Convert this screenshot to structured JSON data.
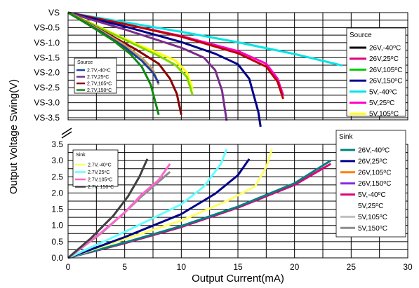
{
  "chart_data": {
    "type": "line",
    "xlabel": "Output Current(mA)",
    "ylabel": "Output Voltage Swing(V)",
    "x_ticks": [
      "0",
      "5",
      "10",
      "15",
      "20",
      "25",
      "30"
    ],
    "xlim": [
      0,
      30
    ],
    "grid": true,
    "source_panel": {
      "y_ticks": [
        "VS",
        "VS-0.5",
        "VS-1.0",
        "VS-1.5",
        "VS-2.0",
        "VS-2.5",
        "VS-3.0",
        "VS-3.5"
      ],
      "ylim": [
        0,
        3.5
      ],
      "legend_large": {
        "title": "Source",
        "placement": "right",
        "entries": [
          {
            "label": "26V,-40°C",
            "color": "#000000"
          },
          {
            "label": "26V,25°C",
            "color": "#e0007a"
          },
          {
            "label": "26V,105°C",
            "color": "#00cc00"
          },
          {
            "label": "26V,150°C",
            "color": "#00008b"
          },
          {
            "label": "5V,-40°C",
            "color": "#00e5e5"
          },
          {
            "label": "5V,25°C",
            "color": "#ff00cc"
          },
          {
            "label": "5V,105°C",
            "color": "#ffff00"
          }
        ]
      },
      "legend_small": {
        "title": "Source",
        "placement": "left",
        "entries": [
          {
            "label": "2.7V,-40°C",
            "color": "#1e3fa0"
          },
          {
            "label": "2.7V,25°C",
            "color": "#7b2c8c"
          },
          {
            "label": "2.7V,105°C",
            "color": "#8b0000"
          },
          {
            "label": "2.7V,150°C",
            "color": "#118811"
          }
        ]
      },
      "series": [
        {
          "color": "#00e5e5",
          "x": [
            0,
            5,
            10,
            15,
            20,
            24.2
          ],
          "y": [
            0,
            0.32,
            0.64,
            0.99,
            1.38,
            1.76
          ]
        },
        {
          "color": "#ff00cc",
          "x": [
            0,
            5,
            10,
            15,
            17.5,
            18.5,
            19
          ],
          "y": [
            0,
            0.38,
            0.78,
            1.28,
            1.7,
            2.2,
            2.75
          ]
        },
        {
          "color": "#c00000",
          "x": [
            0,
            5,
            10,
            15,
            17.5,
            18.5,
            19
          ],
          "y": [
            0,
            0.38,
            0.8,
            1.35,
            1.8,
            2.3,
            2.87
          ]
        },
        {
          "color": "#00008b",
          "x": [
            0,
            5,
            10,
            13,
            15,
            16,
            16.8,
            17
          ],
          "y": [
            0,
            0.46,
            0.98,
            1.37,
            1.72,
            2.2,
            3.3,
            3.8
          ]
        },
        {
          "color": "#7b2c8c",
          "x": [
            0,
            5,
            10,
            12,
            13,
            13.6,
            14
          ],
          "y": [
            0,
            0.56,
            1.17,
            1.5,
            1.92,
            2.6,
            3.6
          ]
        },
        {
          "color": "#ffff00",
          "x": [
            0,
            3,
            6,
            8,
            9.5,
            10.5,
            11
          ],
          "y": [
            0,
            0.52,
            1.04,
            1.35,
            1.6,
            2.0,
            2.55
          ]
        },
        {
          "color": "#7fd900",
          "x": [
            0,
            3,
            6,
            8,
            9.5,
            10.5,
            11
          ],
          "y": [
            0,
            0.54,
            1.08,
            1.44,
            1.75,
            2.15,
            2.75
          ]
        },
        {
          "color": "#8b0000",
          "x": [
            0,
            3,
            6,
            8,
            9,
            9.6,
            10
          ],
          "y": [
            0,
            0.6,
            1.23,
            1.7,
            2.2,
            2.7,
            3.4
          ]
        },
        {
          "color": "#c8a060",
          "x": [
            0,
            3,
            5,
            6.5,
            7.5,
            8
          ],
          "y": [
            0,
            0.62,
            1.08,
            1.5,
            1.9,
            2.4
          ]
        },
        {
          "color": "#1e3fa0",
          "x": [
            0,
            3,
            5,
            6.5,
            7.5,
            8
          ],
          "y": [
            0,
            0.66,
            1.15,
            1.6,
            2.0,
            2.35
          ]
        },
        {
          "color": "#118811",
          "x": [
            0,
            2,
            4,
            5.5,
            6.5,
            7.3,
            8
          ],
          "y": [
            0,
            0.45,
            0.93,
            1.38,
            1.8,
            2.4,
            3.4
          ]
        }
      ]
    },
    "sink_panel": {
      "y_ticks": [
        "0.0",
        "0.5",
        "1.0",
        "1.5",
        "2.0",
        "2.5",
        "3.0",
        "3.5"
      ],
      "ylim": [
        0,
        3.5
      ],
      "legend_large": {
        "title": "Sink",
        "placement": "right",
        "entries": [
          {
            "label": "26V,-40°C",
            "color": "#008080"
          },
          {
            "label": "26V,25°C",
            "color": "#00008b"
          },
          {
            "label": "26V,105°C",
            "color": "#ff8000"
          },
          {
            "label": "26V,150°C",
            "color": "#8a2be2"
          },
          {
            "label": "5V,-40°C",
            "color": "#e0007a"
          },
          {
            "label": "5V,25°C",
            "color": "#ffffff"
          },
          {
            "label": "5V,105°C",
            "color": "#c0c0c0"
          },
          {
            "label": "5V,150°C",
            "color": "#8c8c8c"
          }
        ]
      },
      "legend_small": {
        "title": "Sink",
        "placement": "left",
        "entries": [
          {
            "label": "2.7V,-40°C",
            "color": "#ffff66"
          },
          {
            "label": "2.7V,25°C",
            "color": "#66ffff"
          },
          {
            "label": "2.7V,105°C",
            "color": "#ff66cc"
          },
          {
            "label": "2.7V, 150°C",
            "color": "#404040"
          }
        ]
      },
      "series": [
        {
          "color": "#e0007a",
          "x": [
            0,
            5,
            10,
            15,
            20,
            23.2
          ],
          "y": [
            0,
            0.45,
            0.95,
            1.55,
            2.25,
            2.9
          ]
        },
        {
          "color": "#008080",
          "x": [
            0,
            5,
            10,
            15,
            20,
            23.2
          ],
          "y": [
            0,
            0.47,
            0.98,
            1.58,
            2.3,
            3.0
          ]
        },
        {
          "color": "#ffff66",
          "x": [
            0,
            5,
            10,
            14,
            16.5,
            17.5,
            18
          ],
          "y": [
            0,
            0.58,
            1.15,
            1.75,
            2.2,
            2.8,
            3.35
          ]
        },
        {
          "color": "#00008b",
          "x": [
            0,
            5,
            10,
            13,
            15,
            16
          ],
          "y": [
            0,
            0.64,
            1.35,
            1.98,
            2.55,
            3.05
          ]
        },
        {
          "color": "#66ffff",
          "x": [
            0,
            5,
            10,
            12,
            13.5,
            14
          ],
          "y": [
            0,
            0.8,
            1.65,
            2.2,
            2.9,
            3.35
          ]
        },
        {
          "color": "#8c8c8c",
          "x": [
            0,
            3,
            5,
            6.5,
            7.5,
            9
          ],
          "y": [
            0,
            0.78,
            1.4,
            1.9,
            2.2,
            2.65
          ]
        },
        {
          "color": "#ff66cc",
          "x": [
            0,
            3,
            5,
            6.5,
            8,
            9
          ],
          "y": [
            0,
            0.8,
            1.4,
            1.95,
            2.4,
            2.9
          ]
        },
        {
          "color": "#404040",
          "x": [
            0,
            2,
            4,
            5.3,
            6.3,
            7
          ],
          "y": [
            0,
            0.6,
            1.3,
            1.9,
            2.5,
            3.05
          ]
        }
      ]
    }
  }
}
